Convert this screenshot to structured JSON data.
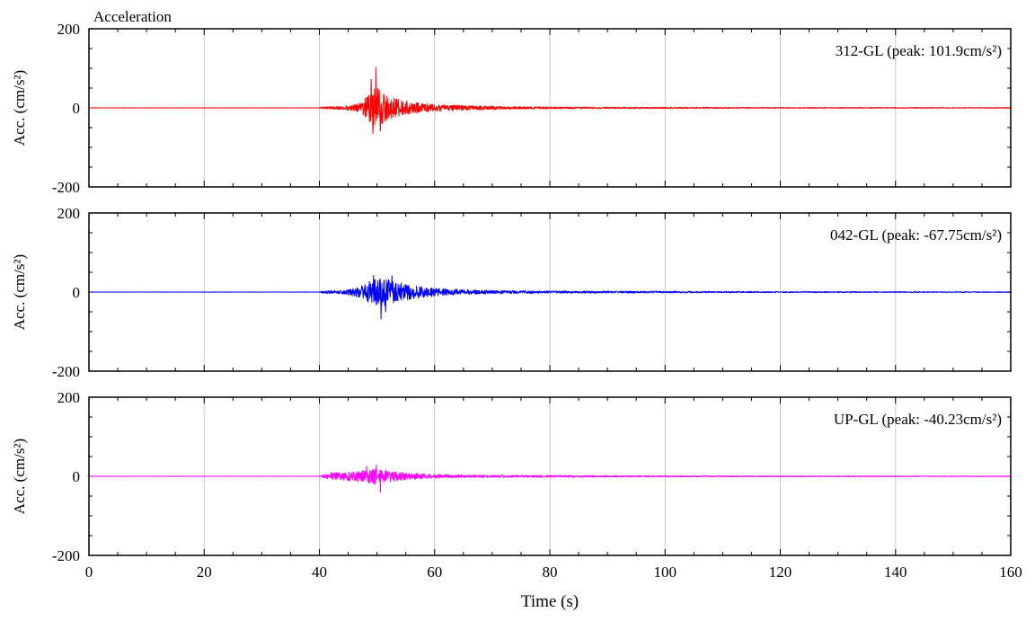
{
  "chart_data": {
    "type": "line",
    "title": "Acceleration",
    "xlabel": "Time (s)",
    "ylabel": "Acc. (cm/s²)",
    "xlim": [
      0,
      160
    ],
    "ylim": [
      -200,
      200
    ],
    "x_ticks": [
      "0",
      "20",
      "40",
      "60",
      "80",
      "100",
      "120",
      "140",
      "160"
    ],
    "y_ticks": [
      "200",
      "0",
      "-200"
    ],
    "grid": true,
    "panels": [
      {
        "label": "312-GL (peak: 101.9cm/s²)",
        "color": "#ff0000",
        "peak": 101.9,
        "envelope": [
          {
            "x": 0,
            "y": 0.4
          },
          {
            "x": 40,
            "y": 0.4
          },
          {
            "x": 40.5,
            "y": 3
          },
          {
            "x": 44,
            "y": 4
          },
          {
            "x": 47,
            "y": 12
          },
          {
            "x": 48.5,
            "y": 35
          },
          {
            "x": 49.5,
            "y": 60
          },
          {
            "x": 50.5,
            "y": 45
          },
          {
            "x": 52,
            "y": 28
          },
          {
            "x": 55,
            "y": 18
          },
          {
            "x": 60,
            "y": 9
          },
          {
            "x": 65,
            "y": 6
          },
          {
            "x": 75,
            "y": 3
          },
          {
            "x": 90,
            "y": 2
          },
          {
            "x": 120,
            "y": 1.3
          },
          {
            "x": 160,
            "y": 1
          }
        ],
        "spikes": [
          {
            "x": 49.8,
            "y": 101.9
          },
          {
            "x": 49.3,
            "y": -65
          },
          {
            "x": 50.6,
            "y": -58
          },
          {
            "x": 49.0,
            "y": 72
          }
        ]
      },
      {
        "label": "042-GL (peak: -67.75cm/s²)",
        "color": "#0000ff",
        "peak": -67.75,
        "envelope": [
          {
            "x": 0,
            "y": 0.4
          },
          {
            "x": 40,
            "y": 0.4
          },
          {
            "x": 40.5,
            "y": 3
          },
          {
            "x": 44,
            "y": 5
          },
          {
            "x": 47,
            "y": 14
          },
          {
            "x": 49,
            "y": 30
          },
          {
            "x": 50.5,
            "y": 38
          },
          {
            "x": 52,
            "y": 32
          },
          {
            "x": 55,
            "y": 20
          },
          {
            "x": 60,
            "y": 10
          },
          {
            "x": 65,
            "y": 6
          },
          {
            "x": 75,
            "y": 3.5
          },
          {
            "x": 90,
            "y": 2.5
          },
          {
            "x": 120,
            "y": 1.5
          },
          {
            "x": 160,
            "y": 1
          }
        ],
        "spikes": [
          {
            "x": 50.7,
            "y": -67.75
          },
          {
            "x": 49.4,
            "y": 42
          },
          {
            "x": 52.6,
            "y": 41
          },
          {
            "x": 51.5,
            "y": -50
          }
        ]
      },
      {
        "label": "UP-GL (peak: -40.23cm/s²)",
        "color": "#ff00ff",
        "peak": -40.23,
        "envelope": [
          {
            "x": 0,
            "y": 0.4
          },
          {
            "x": 40,
            "y": 0.4
          },
          {
            "x": 40.5,
            "y": 4
          },
          {
            "x": 42,
            "y": 9
          },
          {
            "x": 45,
            "y": 11
          },
          {
            "x": 48,
            "y": 16
          },
          {
            "x": 50,
            "y": 21
          },
          {
            "x": 52,
            "y": 15
          },
          {
            "x": 55,
            "y": 9
          },
          {
            "x": 60,
            "y": 5
          },
          {
            "x": 70,
            "y": 3
          },
          {
            "x": 90,
            "y": 2
          },
          {
            "x": 120,
            "y": 1.2
          },
          {
            "x": 160,
            "y": 0.8
          }
        ],
        "spikes": [
          {
            "x": 50.6,
            "y": -40.23
          },
          {
            "x": 49.9,
            "y": 29
          },
          {
            "x": 48.2,
            "y": 26
          }
        ]
      }
    ]
  }
}
